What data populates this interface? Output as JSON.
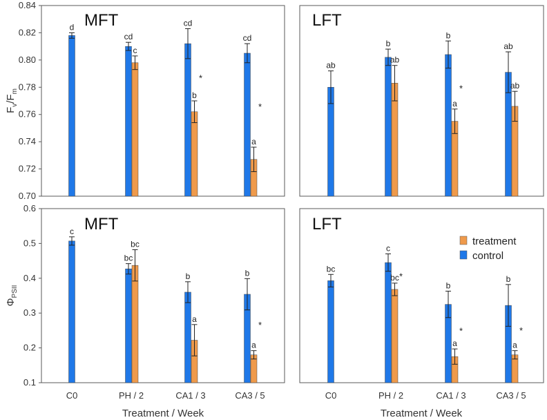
{
  "colors": {
    "control": "#1f78e8",
    "treatment": "#ef9a4b",
    "frame": "#5a5a5a",
    "error": "#222222"
  },
  "legend": {
    "treatment": "treatment",
    "control": "control"
  },
  "axis_titles": {
    "top_y": "F",
    "top_y_sub_v": "v",
    "top_y_slash": "/F",
    "top_y_sub_m": "m",
    "bottom_y": "Φ",
    "bottom_y_sub": "PSII",
    "x": "Treatment / Week"
  },
  "chart_data": [
    {
      "type": "bar",
      "title": "MFT",
      "categories": [
        "C0",
        "PH / 2",
        "CA1 / 3",
        "CA3 / 5"
      ],
      "ylim": [
        0.7,
        0.84
      ],
      "yticks": [
        "0.70",
        "0.72",
        "0.74",
        "0.76",
        "0.78",
        "0.80",
        "0.82",
        "0.84"
      ],
      "series": [
        {
          "name": "control",
          "values": [
            0.818,
            0.81,
            0.812,
            0.805
          ],
          "errors": [
            0.002,
            0.003,
            0.011,
            0.007
          ],
          "letters": [
            "d",
            "cd",
            "cd",
            "cd"
          ]
        },
        {
          "name": "treatment",
          "values": [
            null,
            0.798,
            0.762,
            0.727
          ],
          "errors": [
            null,
            0.005,
            0.008,
            0.009
          ],
          "letters": [
            null,
            "c",
            "b",
            "a"
          ]
        }
      ],
      "stars": [
        null,
        null,
        "*",
        "*"
      ]
    },
    {
      "type": "bar",
      "title": "LFT",
      "categories": [
        "C0",
        "PH / 2",
        "CA1 / 3",
        "CA3 / 5"
      ],
      "ylim": [
        0.7,
        0.84
      ],
      "series": [
        {
          "name": "control",
          "values": [
            0.78,
            0.802,
            0.804,
            0.791
          ],
          "errors": [
            0.012,
            0.006,
            0.01,
            0.015
          ],
          "letters": [
            "ab",
            "b",
            "b",
            "ab"
          ]
        },
        {
          "name": "treatment",
          "values": [
            null,
            0.783,
            0.755,
            0.766
          ],
          "errors": [
            null,
            0.013,
            0.009,
            0.011
          ],
          "letters": [
            null,
            "ab",
            "a",
            "ab"
          ]
        }
      ],
      "stars": [
        null,
        null,
        "*",
        null
      ]
    },
    {
      "type": "bar",
      "title": "MFT",
      "categories": [
        "C0",
        "PH / 2",
        "CA1 / 3",
        "CA3 / 5"
      ],
      "ylim": [
        0.1,
        0.6
      ],
      "yticks": [
        "0.1",
        "0.2",
        "0.3",
        "0.4",
        "0.5",
        "0.6"
      ],
      "xticks": [
        "C0",
        "PH / 2",
        "CA1 / 3",
        "CA3 / 5"
      ],
      "series": [
        {
          "name": "control",
          "values": [
            0.507,
            0.427,
            0.36,
            0.354
          ],
          "errors": [
            0.012,
            0.015,
            0.03,
            0.045
          ],
          "letters": [
            "c",
            "bc",
            "b",
            "b"
          ]
        },
        {
          "name": "treatment",
          "values": [
            null,
            0.437,
            0.222,
            0.18
          ],
          "errors": [
            null,
            0.045,
            0.045,
            0.012
          ],
          "letters": [
            null,
            "bc",
            "a",
            "a"
          ]
        }
      ],
      "stars": [
        null,
        null,
        null,
        "*"
      ]
    },
    {
      "type": "bar",
      "title": "LFT",
      "categories": [
        "C0",
        "PH / 2",
        "CA1 / 3",
        "CA3 / 5"
      ],
      "ylim": [
        0.1,
        0.6
      ],
      "xticks": [
        "C0",
        "PH / 2",
        "CA1 / 3",
        "CA3 / 5"
      ],
      "series": [
        {
          "name": "control",
          "values": [
            0.393,
            0.445,
            0.325,
            0.322
          ],
          "errors": [
            0.018,
            0.025,
            0.038,
            0.06
          ],
          "letters": [
            "bc",
            "c",
            "b",
            "b"
          ]
        },
        {
          "name": "treatment",
          "values": [
            null,
            0.368,
            0.175,
            0.18
          ],
          "errors": [
            null,
            0.018,
            0.022,
            0.012
          ],
          "letters": [
            null,
            "bc",
            "a",
            "a"
          ]
        }
      ],
      "stars": [
        null,
        "*",
        "*",
        "*"
      ]
    }
  ]
}
